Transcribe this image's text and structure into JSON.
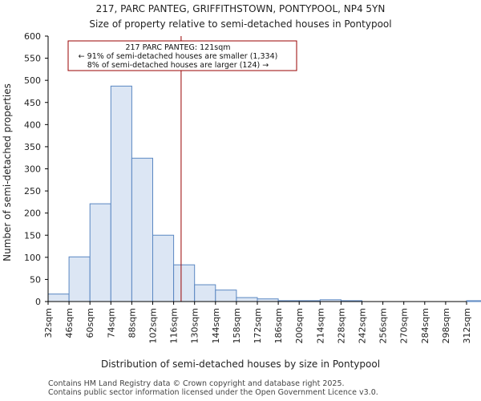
{
  "chart_data": {
    "type": "bar",
    "title": "217, PARC PANTEG, GRIFFITHSTOWN, PONTYPOOL, NP4 5YN",
    "subtitle": "Size of property relative to semi-detached houses in Pontypool",
    "xlabel": "Distribution of semi-detached houses by size in Pontypool",
    "ylabel": "Number of semi-detached properties",
    "ylim": [
      0,
      600
    ],
    "yticks": [
      "0",
      "50",
      "100",
      "150",
      "200",
      "250",
      "300",
      "350",
      "400",
      "450",
      "500",
      "550",
      "600"
    ],
    "categories": [
      "32sqm",
      "46sqm",
      "60sqm",
      "74sqm",
      "88sqm",
      "102sqm",
      "116sqm",
      "130sqm",
      "144sqm",
      "158sqm",
      "172sqm",
      "186sqm",
      "200sqm",
      "214sqm",
      "228sqm",
      "242sqm",
      "256sqm",
      "270sqm",
      "284sqm",
      "298sqm",
      "312sqm"
    ],
    "bin_edges": [
      32,
      46,
      60,
      74,
      88,
      102,
      116,
      130,
      144,
      158,
      172,
      186,
      200,
      214,
      228,
      242,
      256,
      270,
      284,
      298,
      312,
      326
    ],
    "values": [
      17,
      101,
      221,
      487,
      324,
      150,
      83,
      38,
      26,
      9,
      6,
      2,
      2,
      4,
      2,
      0,
      0,
      0,
      0,
      0,
      2
    ],
    "marker": {
      "value": 121,
      "color": "#990000"
    },
    "annotation": {
      "line1": "217 PARC PANTEG: 121sqm",
      "line2": "← 91% of semi-detached houses are smaller (1,334)",
      "line3": "8% of semi-detached houses are larger (124) →"
    },
    "colors": {
      "bar_fill": "#dce6f4",
      "bar_edge": "#5a87c2",
      "axis": "#000000",
      "annot_border": "#990000"
    }
  },
  "footer": {
    "line1": "Contains HM Land Registry data © Crown copyright and database right 2025.",
    "line2": "Contains public sector information licensed under the Open Government Licence v3.0."
  }
}
